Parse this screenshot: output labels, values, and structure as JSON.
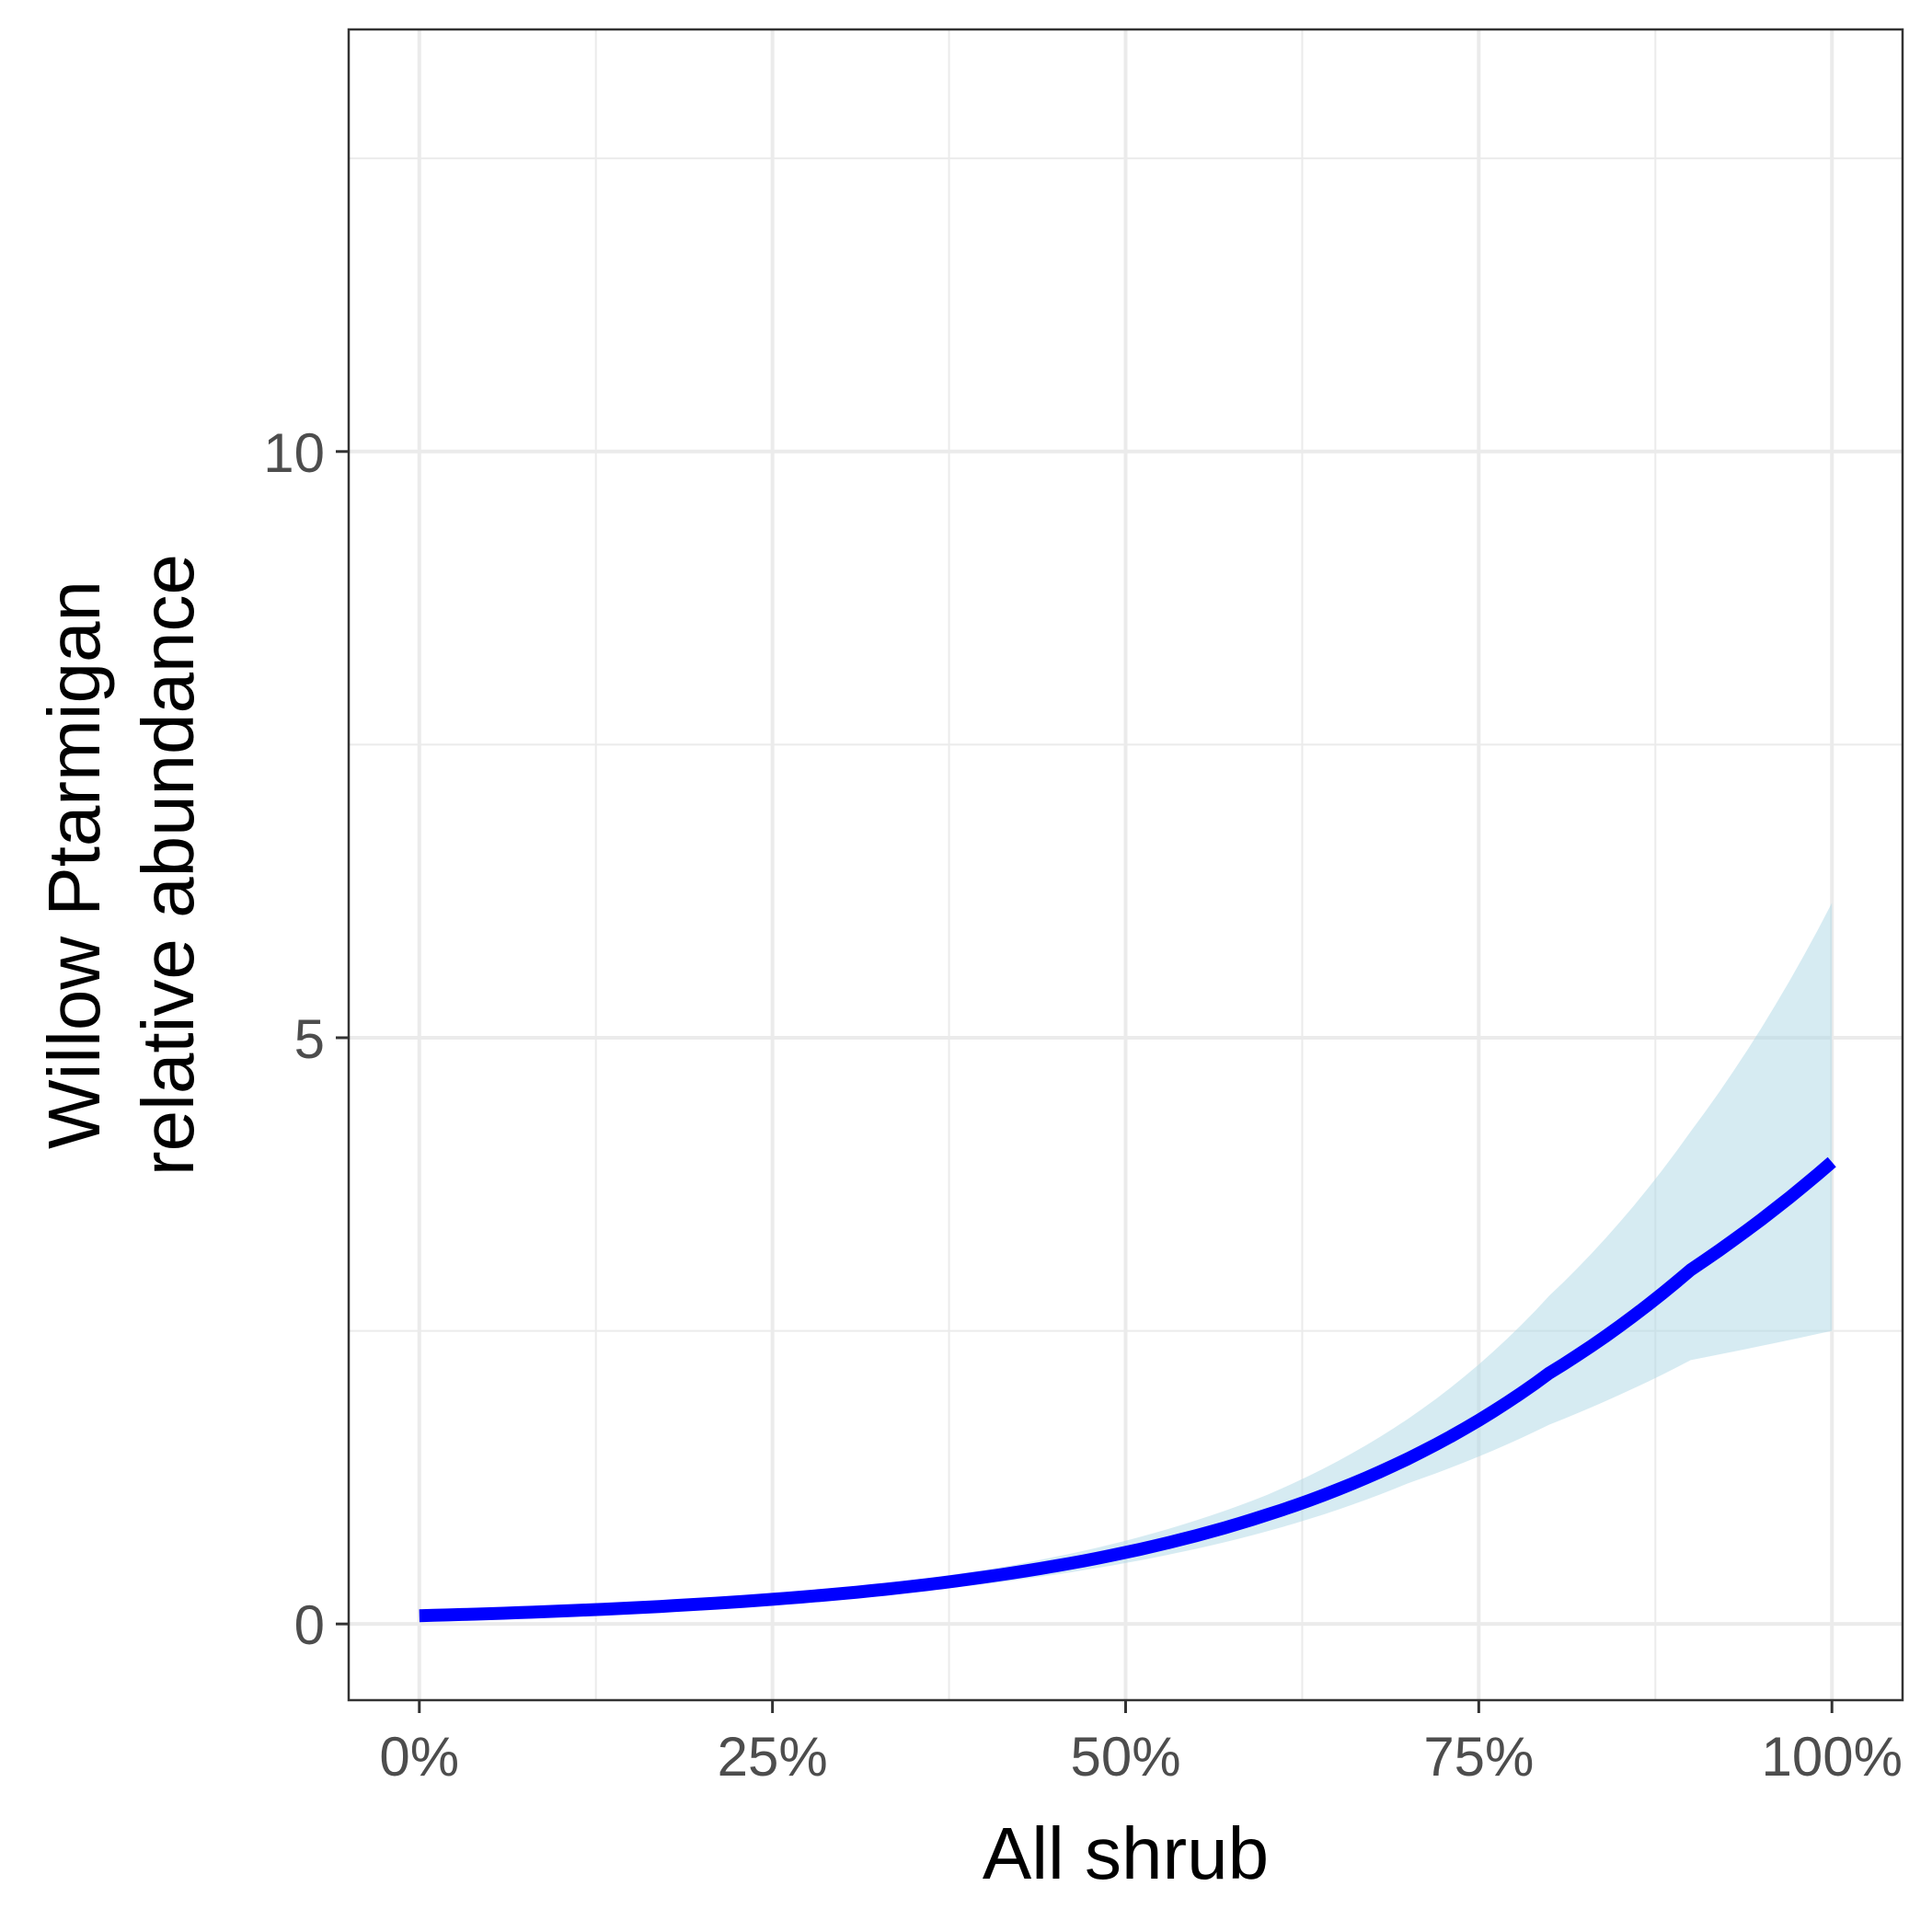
{
  "chart_data": {
    "type": "line",
    "title": "",
    "xlabel": "All shrub",
    "ylabel_lines": [
      "Willow Ptarmigan",
      "relative abundance"
    ],
    "xlim": [
      -0.05,
      1.05
    ],
    "ylim": [
      -0.65,
      13.6
    ],
    "x_ticks": [
      {
        "value": 0,
        "label": "0%"
      },
      {
        "value": 0.25,
        "label": "25%"
      },
      {
        "value": 0.5,
        "label": "50%"
      },
      {
        "value": 0.75,
        "label": "75%"
      },
      {
        "value": 1,
        "label": "100%"
      }
    ],
    "y_ticks": [
      {
        "value": 0,
        "label": "0"
      },
      {
        "value": 5,
        "label": "5"
      },
      {
        "value": 10,
        "label": "10"
      }
    ],
    "x_minor_grid": [
      0.125,
      0.375,
      0.625,
      0.875
    ],
    "y_minor_grid": [
      2.5,
      7.5,
      12.5
    ],
    "grid": true,
    "line_color": "#0000ff",
    "ribbon_color": "#add8e6",
    "panel_border_color": "#333333",
    "grid_color": "#ebebeb",
    "series": [
      {
        "x": [
          0,
          0.1,
          0.2,
          0.3,
          0.4,
          0.5,
          0.6,
          0.7,
          0.8,
          0.9,
          1.0
        ],
        "y": [
          0.07,
          0.11,
          0.17,
          0.26,
          0.4,
          0.61,
          0.93,
          1.41,
          2.14,
          3.02,
          3.94
        ],
        "lower": [
          0.06,
          0.09,
          0.14,
          0.22,
          0.34,
          0.52,
          0.79,
          1.2,
          1.7,
          2.25,
          2.5
        ],
        "upper": [
          0.08,
          0.14,
          0.21,
          0.31,
          0.46,
          0.71,
          1.1,
          1.75,
          2.8,
          4.2,
          6.15
        ]
      }
    ]
  }
}
